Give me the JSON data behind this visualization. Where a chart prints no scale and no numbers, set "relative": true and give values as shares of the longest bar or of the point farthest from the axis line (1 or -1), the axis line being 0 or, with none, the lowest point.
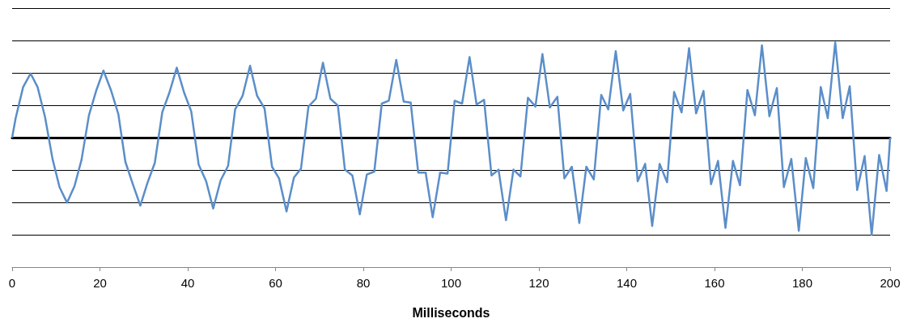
{
  "chart_data": {
    "type": "line",
    "xlabel": "Milliseconds",
    "relative": true,
    "xlim": [
      0,
      200
    ],
    "xticks": [
      0,
      20,
      40,
      60,
      80,
      100,
      120,
      140,
      160,
      180,
      200
    ],
    "grid": "y",
    "marker": "none",
    "color": "#5b8ec9",
    "x": [
      0,
      0.8,
      2.5,
      4.2,
      5.8,
      7.5,
      9.2,
      10.8,
      12.5,
      14.2,
      15.8,
      17.5,
      19.2,
      20.8,
      22.5,
      24.2,
      25.8,
      27.5,
      29.2,
      30.8,
      32.5,
      34.2,
      35.8,
      37.5,
      39.2,
      40.8,
      42.5,
      44.2,
      45.8,
      47.5,
      49.2,
      50.8,
      52.5,
      54.2,
      55.8,
      57.5,
      59.2,
      60.8,
      62.5,
      64.2,
      65.8,
      67.5,
      69.2,
      70.8,
      72.5,
      74.2,
      75.8,
      77.5,
      79.2,
      80.8,
      82.5,
      84.2,
      85.8,
      87.5,
      89.2,
      90.8,
      92.5,
      94.2,
      95.8,
      97.5,
      99.2,
      100.8,
      102.5,
      104.2,
      105.8,
      107.5,
      109.2,
      110.8,
      112.5,
      114.2,
      115.8,
      117.5,
      119.2,
      120.8,
      122.5,
      124.2,
      125.8,
      127.5,
      129.2,
      130.8,
      132.5,
      134.2,
      135.8,
      137.5,
      139.2,
      140.8,
      142.5,
      144.2,
      145.8,
      147.5,
      149.2,
      150.8,
      152.5,
      154.2,
      155.8,
      157.5,
      159.2,
      160.8,
      162.5,
      164.2,
      165.8,
      167.5,
      169.2,
      170.8,
      172.5,
      174.2,
      175.8,
      177.5,
      179.2,
      180.8,
      182.5,
      184.2,
      185.8,
      187.5,
      189.2,
      190.8,
      192.5,
      194.2,
      195.8,
      197.5,
      199.2,
      200
    ],
    "values": [
      0,
      0.2,
      0.52,
      0.66,
      0.52,
      0.21,
      -0.22,
      -0.51,
      -0.67,
      -0.5,
      -0.23,
      0.23,
      0.49,
      0.69,
      0.49,
      0.24,
      -0.25,
      -0.48,
      -0.7,
      -0.47,
      -0.26,
      0.26,
      0.46,
      0.72,
      0.46,
      0.27,
      -0.28,
      -0.45,
      -0.73,
      -0.44,
      -0.29,
      0.29,
      0.43,
      0.74,
      0.43,
      0.3,
      -0.3,
      -0.42,
      -0.76,
      -0.41,
      -0.32,
      0.32,
      0.4,
      0.77,
      0.4,
      0.33,
      -0.33,
      -0.39,
      -0.79,
      -0.38,
      -0.35,
      0.35,
      0.38,
      0.8,
      0.37,
      0.36,
      -0.36,
      -0.36,
      -0.82,
      -0.36,
      -0.37,
      0.38,
      0.35,
      0.83,
      0.34,
      0.39,
      -0.39,
      -0.33,
      -0.85,
      -0.33,
      -0.4,
      0.41,
      0.32,
      0.86,
      0.31,
      0.42,
      -0.42,
      -0.3,
      -0.88,
      -0.3,
      -0.43,
      0.44,
      0.29,
      0.89,
      0.28,
      0.45,
      -0.45,
      -0.27,
      -0.91,
      -0.27,
      -0.46,
      0.47,
      0.26,
      0.92,
      0.25,
      0.48,
      -0.48,
      -0.24,
      -0.93,
      -0.24,
      -0.49,
      0.49,
      0.23,
      0.95,
      0.22,
      0.51,
      -0.51,
      -0.22,
      -0.96,
      -0.21,
      -0.52,
      0.52,
      0.2,
      0.98,
      0.2,
      0.53,
      -0.54,
      -0.19,
      -1,
      -0.18,
      -0.55,
      0
    ]
  }
}
